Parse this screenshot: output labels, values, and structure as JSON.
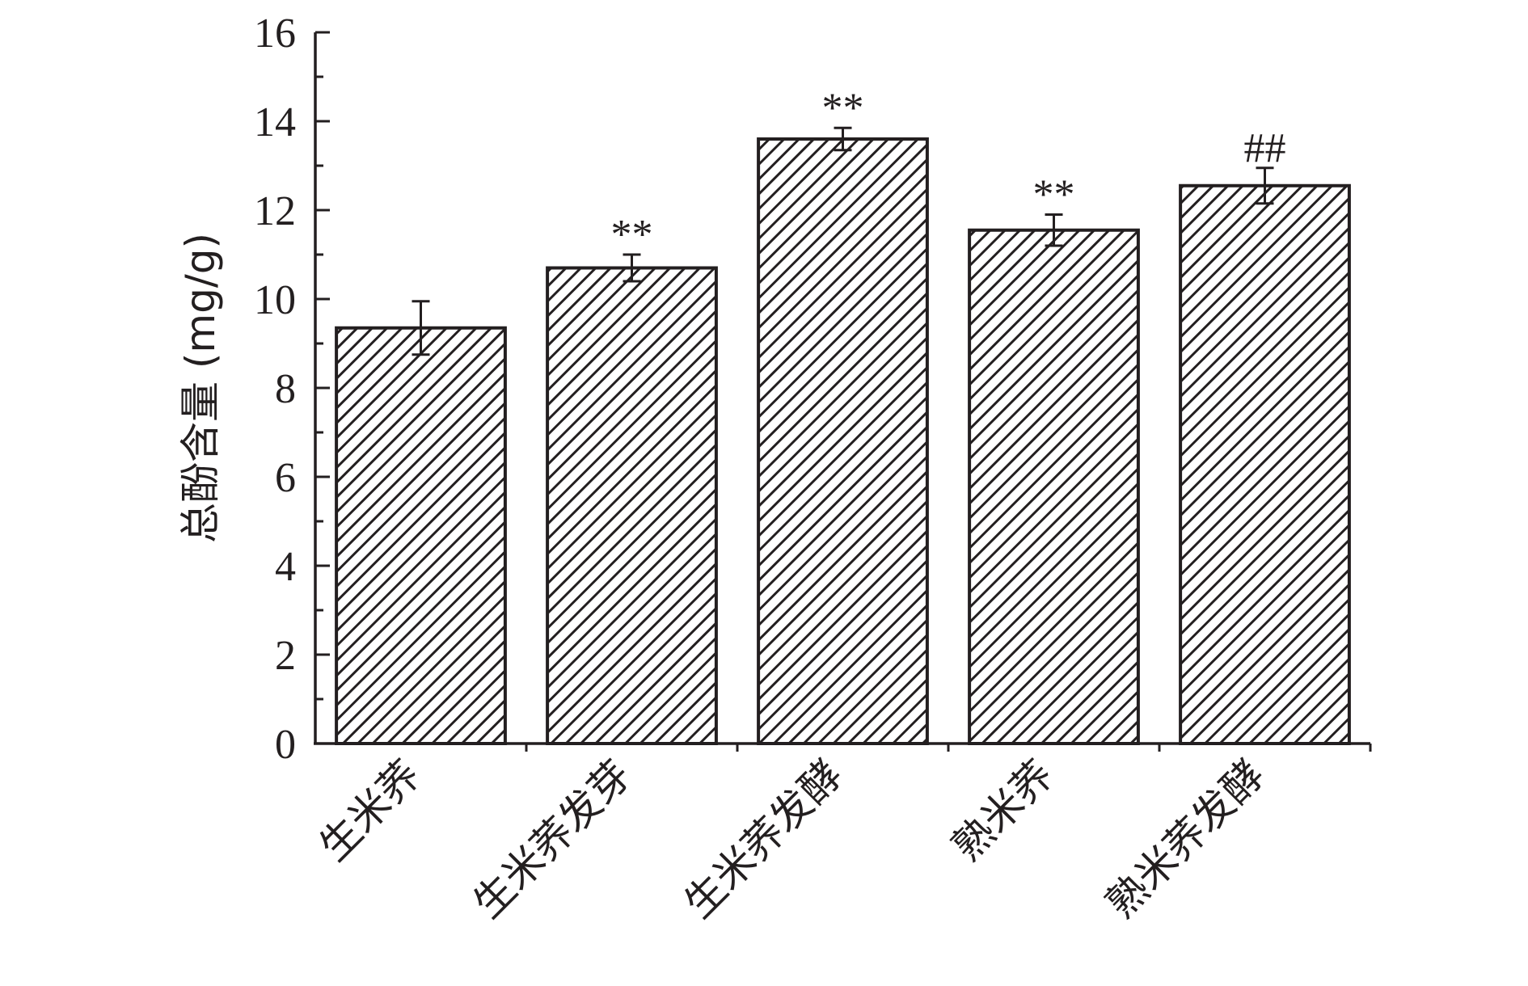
{
  "chart_data": {
    "type": "bar",
    "title": "",
    "xlabel": "",
    "ylabel": "总酚含量 (mg/g)",
    "ylim": [
      0,
      16
    ],
    "yticks": [
      0,
      2,
      4,
      6,
      8,
      10,
      12,
      14,
      16
    ],
    "categories": [
      "生米荞",
      "生米荞发芽",
      "生米荞发酵",
      "熟米荞",
      "熟米荞发酵"
    ],
    "values": [
      9.35,
      10.7,
      13.6,
      11.55,
      12.55
    ],
    "errors": [
      0.6,
      0.3,
      0.25,
      0.35,
      0.4
    ],
    "annotations": [
      "",
      "**",
      "**",
      "**",
      "##"
    ],
    "bar_pattern": "diagonal-hatch",
    "grid": false,
    "legend": "none",
    "colors": {
      "ink": "#231f20",
      "background": "#ffffff"
    }
  }
}
